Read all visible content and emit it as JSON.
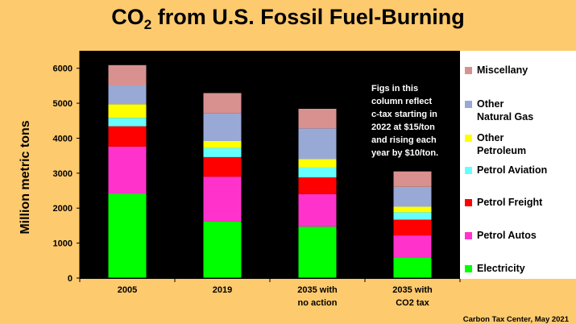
{
  "title": {
    "main": "CO",
    "subscript": "2",
    "rest": " from U.S. Fossil Fuel-Burning"
  },
  "chart_data": {
    "type": "bar",
    "stacked": true,
    "ylabel": "Million metric tons",
    "ylim": [
      0,
      6500
    ],
    "yticks": [
      "0",
      "1000",
      "2000",
      "3000",
      "4000",
      "5000",
      "6000"
    ],
    "ytick_values": [
      0,
      1000,
      2000,
      3000,
      4000,
      5000,
      6000
    ],
    "grid": false,
    "legend_position": "right",
    "categories": [
      [
        "2005"
      ],
      [
        "2019"
      ],
      [
        "2035 with",
        "no action"
      ],
      [
        "2035 with",
        "CO2 tax"
      ]
    ],
    "series": [
      {
        "name": "Electricity",
        "color": "#00ff00",
        "values": [
          2410,
          1620,
          1470,
          590
        ]
      },
      {
        "name": "Petrol Autos",
        "color": "#ff33cc",
        "values": [
          1350,
          1280,
          930,
          630
        ]
      },
      {
        "name": "Petrol Freight",
        "color": "#ff0000",
        "values": [
          580,
          560,
          480,
          450
        ]
      },
      {
        "name": "Petrol Aviation",
        "color": "#66ffff",
        "values": [
          240,
          260,
          290,
          210
        ]
      },
      {
        "name": "Other Petroleum",
        "color": "#ffff00",
        "values": [
          390,
          200,
          230,
          160
        ]
      },
      {
        "name": "Other Natural Gas",
        "color": "#99a9d6",
        "values": [
          540,
          790,
          880,
          570
        ]
      },
      {
        "name": "Miscellany",
        "color": "#d8918f",
        "values": [
          580,
          580,
          560,
          440
        ]
      }
    ]
  },
  "legend": [
    {
      "label": "Miscellany",
      "color": "#d8918f"
    },
    {
      "label": "Other\nNatural Gas",
      "color": "#99a9d6"
    },
    {
      "label": "Other\nPetroleum",
      "color": "#ffff00"
    },
    {
      "label": "Petrol Aviation",
      "color": "#66ffff"
    },
    {
      "label": "Petrol Freight",
      "color": "#ff0000"
    },
    {
      "label": "Petrol Autos",
      "color": "#ff33cc"
    },
    {
      "label": "Electricity",
      "color": "#00ff00"
    }
  ],
  "annotation": "Figs in this\ncolumn reflect\nc-tax starting in\n2022 at $15/ton\nand rising each\nyear by $10/ton.",
  "credit": "Carbon Tax Center, May 2021"
}
